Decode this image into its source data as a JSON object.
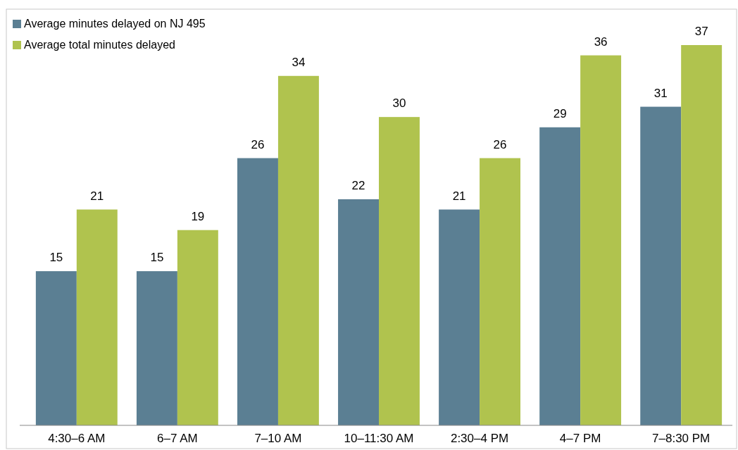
{
  "chart_data": {
    "type": "bar",
    "categories": [
      "4:30–6 AM",
      "6–7 AM",
      "7–10 AM",
      "10–11:30 AM",
      "2:30–4 PM",
      "4–7 PM",
      "7–8:30 PM"
    ],
    "series": [
      {
        "name": "Average minutes delayed on NJ 495",
        "color": "#5b7f93",
        "values": [
          15,
          15,
          26,
          22,
          21,
          29,
          31
        ]
      },
      {
        "name": "Average total minutes delayed",
        "color": "#b0c34e",
        "values": [
          21,
          19,
          34,
          30,
          26,
          36,
          37
        ]
      }
    ],
    "data_labels": true,
    "legend": "top left"
  }
}
